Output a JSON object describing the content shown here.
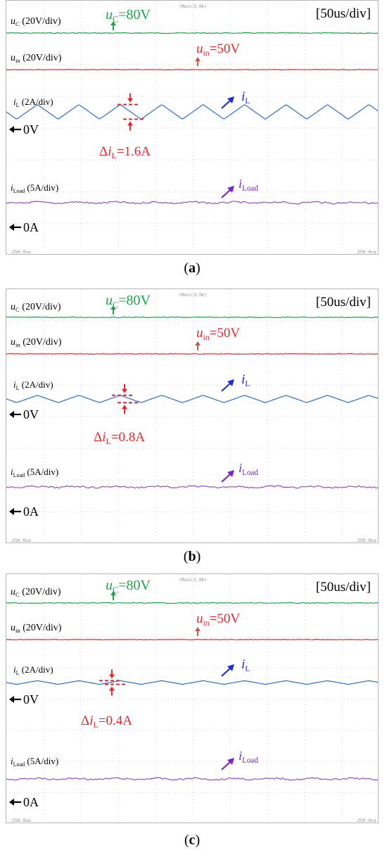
{
  "chart_data": [
    {
      "type": "line",
      "title": "",
      "timebase": "[50us/div]",
      "header_label": "(Main:5.0k)",
      "time_start_label": "-250.0us",
      "time_end_label": "250.0us",
      "caption_letter": "a",
      "xlim_us": [
        -250,
        250
      ],
      "series": [
        {
          "name": "uC",
          "scale_label": "(20V/div)",
          "color": "#1aa54a",
          "annotation": "=80V",
          "kind": "dc"
        },
        {
          "name": "uin",
          "scale_label": "(20V/div)",
          "color": "#e0282e",
          "annotation": "=50V",
          "kind": "dc"
        },
        {
          "name": "iL",
          "scale_label": "(2A/div)",
          "color": "#2a6fd4",
          "kind": "triangle",
          "ripple_A": 1.6,
          "cycles": 9
        },
        {
          "name": "iLoad",
          "scale_label": "(5A/div)",
          "color": "#8a3fc7",
          "kind": "noise"
        }
      ],
      "zero_markers": [
        "0V",
        "0A"
      ],
      "ripple_label": "=1.6A"
    },
    {
      "type": "line",
      "title": "",
      "timebase": "[50us/div]",
      "header_label": "(Main:5.0k)",
      "time_start_label": "-250.0us",
      "time_end_label": "250.0us",
      "caption_letter": "b",
      "xlim_us": [
        -250,
        250
      ],
      "series": [
        {
          "name": "uC",
          "scale_label": "(20V/div)",
          "color": "#1aa54a",
          "annotation": "=80V",
          "kind": "dc"
        },
        {
          "name": "uin",
          "scale_label": "(20V/div)",
          "color": "#e0282e",
          "annotation": "=50V",
          "kind": "dc"
        },
        {
          "name": "iL",
          "scale_label": "(2A/div)",
          "color": "#2a6fd4",
          "kind": "triangle",
          "ripple_A": 0.8,
          "cycles": 9
        },
        {
          "name": "iLoad",
          "scale_label": "(5A/div)",
          "color": "#8a3fc7",
          "kind": "noise"
        }
      ],
      "zero_markers": [
        "0V",
        "0A"
      ],
      "ripple_label": "=0.8A"
    },
    {
      "type": "line",
      "title": "",
      "timebase": "[50us/div]",
      "header_label": "(Main:5.0k)",
      "time_start_label": "-250.0us",
      "time_end_label": "250.0us",
      "caption_letter": "c",
      "xlim_us": [
        -250,
        250
      ],
      "series": [
        {
          "name": "uC",
          "scale_label": "(20V/div)",
          "color": "#1aa54a",
          "annotation": "=80V",
          "kind": "dc"
        },
        {
          "name": "uin",
          "scale_label": "(20V/div)",
          "color": "#e0282e",
          "annotation": "=50V",
          "kind": "dc"
        },
        {
          "name": "iL",
          "scale_label": "(2A/div)",
          "color": "#2a6fd4",
          "kind": "triangle",
          "ripple_A": 0.4,
          "cycles": 9
        },
        {
          "name": "iLoad",
          "scale_label": "(5A/div)",
          "color": "#8a3fc7",
          "kind": "noise"
        }
      ],
      "zero_markers": [
        "0V",
        "0A"
      ],
      "ripple_label": "=0.4A"
    }
  ]
}
